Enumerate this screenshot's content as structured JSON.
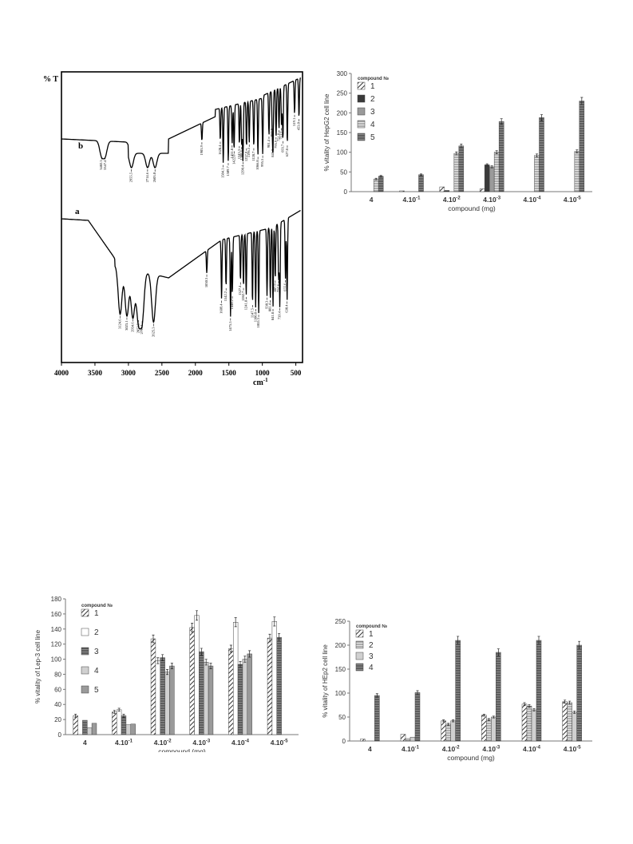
{
  "ir": {
    "ylabel": "% T",
    "xlabel": "cm",
    "xlabel_sup": "-1",
    "trace_b_label": "b",
    "trace_a_label": "a",
    "xticks": [
      "4000",
      "3500",
      "3000",
      "2500",
      "2000",
      "1500",
      "1000",
      "500"
    ],
    "peaks_b": [
      {
        "x": 3402,
        "label": "3402.5"
      },
      {
        "x": 3347,
        "label": "3347.4"
      },
      {
        "x": 2955,
        "label": "2955.5"
      },
      {
        "x": 2714,
        "label": "2714.6"
      },
      {
        "x": 2603,
        "label": "2603.0"
      },
      {
        "x": 1903,
        "label": "1903.9"
      },
      {
        "x": 1628,
        "label": "1628.4"
      },
      {
        "x": 1584,
        "label": "1584.1"
      },
      {
        "x": 1509,
        "label": "1509.7"
      },
      {
        "x": 1451,
        "label": "1451.8"
      },
      {
        "x": 1422,
        "label": "1422.0"
      },
      {
        "x": 1343,
        "label": "1343.3"
      },
      {
        "x": 1308,
        "label": "1308.6"
      },
      {
        "x": 1290,
        "label": "1290.4"
      },
      {
        "x": 1237,
        "label": "1237.9"
      },
      {
        "x": 1196,
        "label": "1196.5"
      },
      {
        "x": 1128,
        "label": "1128.7"
      },
      {
        "x": 1066,
        "label": "1066.8"
      },
      {
        "x": 995,
        "label": "995.5"
      },
      {
        "x": 901,
        "label": "901.4"
      },
      {
        "x": 852,
        "label": "852.8"
      },
      {
        "x": 841,
        "label": "841.8"
      },
      {
        "x": 795,
        "label": "795.9"
      },
      {
        "x": 751,
        "label": "751.8"
      },
      {
        "x": 713,
        "label": "713.9"
      },
      {
        "x": 693,
        "label": "693.7"
      },
      {
        "x": 627,
        "label": "627.8"
      },
      {
        "x": 519,
        "label": "519.1"
      },
      {
        "x": 453,
        "label": "453.0"
      }
    ],
    "peaks_a": [
      {
        "x": 3124,
        "label": "3124.6"
      },
      {
        "x": 3023,
        "label": "3023.1"
      },
      {
        "x": 2934,
        "label": "2934.6"
      },
      {
        "x": 2852,
        "label": "2852.5"
      },
      {
        "x": 2795,
        "label": "2795.1"
      },
      {
        "x": 2625,
        "label": "2625.3"
      },
      {
        "x": 1830,
        "label": "1830.3"
      },
      {
        "x": 1609,
        "label": "1609.4"
      },
      {
        "x": 1542,
        "label": "1542.2"
      },
      {
        "x": 1475,
        "label": "1475.5"
      },
      {
        "x": 1448,
        "label": "1448.2"
      },
      {
        "x": 1327,
        "label": "1327.4"
      },
      {
        "x": 1282,
        "label": "1282.7"
      },
      {
        "x": 1241,
        "label": "1241.8"
      },
      {
        "x": 1147,
        "label": "1147.5"
      },
      {
        "x": 1100,
        "label": "1100.8"
      },
      {
        "x": 1055,
        "label": "1055.3"
      },
      {
        "x": 930,
        "label": "930.3"
      },
      {
        "x": 881,
        "label": "881.4"
      },
      {
        "x": 841,
        "label": "841.8"
      },
      {
        "x": 807,
        "label": "807.9"
      },
      {
        "x": 757,
        "label": "757.6"
      },
      {
        "x": 739,
        "label": "739.4"
      },
      {
        "x": 655,
        "label": "655.6"
      },
      {
        "x": 630,
        "label": "630.4"
      }
    ]
  },
  "charts": [
    {
      "id": "hepg2",
      "type": "bar",
      "ylabel": "% vitality of HepG2 cell line",
      "xlabel": "compound (mg)",
      "legend_title": "compound №",
      "ylim": [
        0,
        300
      ],
      "yticks": [
        0,
        50,
        100,
        150,
        200,
        250,
        300
      ],
      "categories": [
        "4",
        "4.10-1",
        "4.10-2",
        "4.10-3",
        "4.10-4",
        "4.10-5"
      ],
      "series": [
        {
          "name": "1",
          "pattern": "diag",
          "values": [
            0,
            2,
            12,
            7,
            0,
            0
          ]
        },
        {
          "name": "2",
          "pattern": "dark",
          "values": [
            0,
            0,
            3,
            68,
            0,
            0
          ]
        },
        {
          "name": "3",
          "pattern": "grey",
          "values": [
            0,
            0,
            0,
            63,
            0,
            0
          ]
        },
        {
          "name": "4",
          "pattern": "hlines",
          "values": [
            32,
            0,
            97,
            100,
            92,
            102
          ]
        },
        {
          "name": "5",
          "pattern": "hdark",
          "values": [
            39,
            43,
            116,
            178,
            188,
            230
          ]
        }
      ]
    },
    {
      "id": "lep3",
      "type": "bar",
      "ylabel": "% vitality of Lep-3 cell line",
      "xlabel": "compound (mg)",
      "legend_title": "compound №",
      "ylim": [
        0,
        180
      ],
      "yticks": [
        0,
        20,
        40,
        60,
        80,
        100,
        120,
        140,
        160,
        180
      ],
      "categories": [
        "4",
        "4.10-1",
        "4.10-2",
        "4.10-3",
        "4.10-4",
        "4.10-5"
      ],
      "series": [
        {
          "name": "1",
          "pattern": "diag",
          "values": [
            25,
            30,
            127,
            142,
            114,
            128
          ]
        },
        {
          "name": "2",
          "pattern": "white",
          "values": [
            0,
            33,
            98,
            158,
            149,
            150
          ]
        },
        {
          "name": "3",
          "pattern": "hdark",
          "values": [
            19,
            25,
            102,
            110,
            93,
            129
          ]
        },
        {
          "name": "4",
          "pattern": "light",
          "values": [
            9,
            13,
            83,
            96,
            100,
            0
          ]
        },
        {
          "name": "5",
          "pattern": "grey",
          "values": [
            15,
            14,
            91,
            91,
            107,
            0
          ]
        }
      ]
    },
    {
      "id": "hep2",
      "type": "bar",
      "ylabel": "% vitality of HEp2 cell line",
      "xlabel": "compound (mg)",
      "legend_title": "compound №",
      "ylim": [
        0,
        250
      ],
      "yticks": [
        0,
        50,
        100,
        150,
        200,
        250
      ],
      "categories": [
        "4",
        "4.10-1",
        "4.10-2",
        "4.10-3",
        "4.10-4",
        "4.10-5"
      ],
      "series": [
        {
          "name": "1",
          "pattern": "diag",
          "values": [
            4,
            14,
            42,
            54,
            77,
            82
          ]
        },
        {
          "name": "2",
          "pattern": "hlines",
          "values": [
            0,
            5,
            35,
            45,
            73,
            80
          ]
        },
        {
          "name": "3",
          "pattern": "light",
          "values": [
            0,
            8,
            42,
            50,
            65,
            60
          ]
        },
        {
          "name": "4",
          "pattern": "hdark",
          "values": [
            95,
            101,
            210,
            185,
            210,
            200
          ]
        }
      ]
    }
  ]
}
